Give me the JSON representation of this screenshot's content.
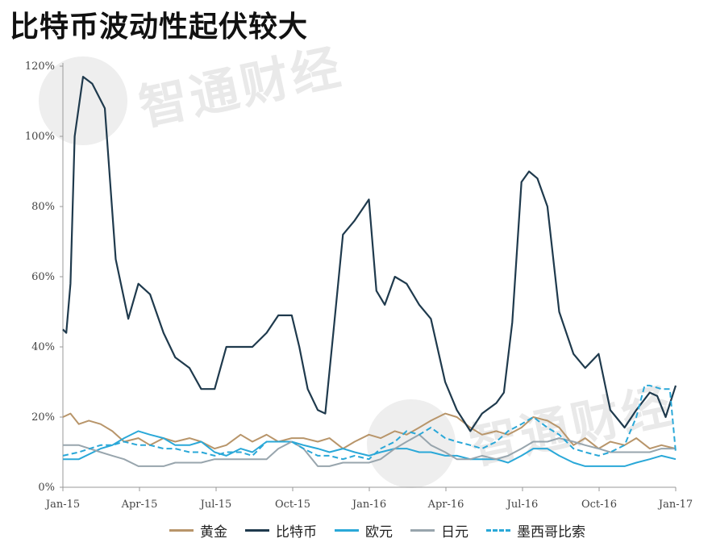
{
  "title": "比特币波动性起伏较大",
  "watermark": "智通财经",
  "colors": {
    "gold": "#b8956a",
    "bitcoin": "#1f3a4d",
    "euro": "#2aa8d8",
    "yen": "#98a5ad",
    "peso": "#2aa8d8"
  },
  "chart_data": {
    "type": "line",
    "title": "比特币波动性起伏较大",
    "xlabel": "",
    "ylabel": "",
    "x_range": [
      "2015-01-01",
      "2017-01-01"
    ],
    "ylim": [
      0,
      120
    ],
    "y_ticks": [
      "0%",
      "20%",
      "40%",
      "60%",
      "80%",
      "100%",
      "120%"
    ],
    "x_ticks": [
      "Jan-15",
      "Apr-15",
      "Jul-15",
      "Oct-15",
      "Jan-16",
      "Apr-16",
      "Jul-16",
      "Oct-16",
      "Jan-17"
    ],
    "legend_position": "bottom",
    "series": [
      {
        "name": "黄金",
        "color": "#b8956a",
        "dash": false,
        "x": [
          "2015-01-01",
          "2015-01-10",
          "2015-01-20",
          "2015-02-01",
          "2015-02-15",
          "2015-03-01",
          "2015-03-15",
          "2015-04-01",
          "2015-04-15",
          "2015-05-01",
          "2015-05-15",
          "2015-06-01",
          "2015-06-15",
          "2015-07-01",
          "2015-07-15",
          "2015-08-01",
          "2015-08-15",
          "2015-09-01",
          "2015-09-15",
          "2015-10-01",
          "2015-10-15",
          "2015-11-01",
          "2015-11-15",
          "2015-12-01",
          "2015-12-15",
          "2016-01-01",
          "2016-01-15",
          "2016-02-01",
          "2016-02-15",
          "2016-03-01",
          "2016-03-15",
          "2016-04-01",
          "2016-04-15",
          "2016-05-01",
          "2016-05-15",
          "2016-06-01",
          "2016-06-15",
          "2016-07-01",
          "2016-07-15",
          "2016-08-01",
          "2016-08-15",
          "2016-09-01",
          "2016-09-15",
          "2016-10-01",
          "2016-10-15",
          "2016-11-01",
          "2016-11-15",
          "2016-12-01",
          "2016-12-15",
          "2017-01-01"
        ],
        "y": [
          20,
          21,
          18,
          19,
          18,
          16,
          13,
          14,
          12,
          14,
          13,
          14,
          13,
          11,
          12,
          15,
          13,
          15,
          13,
          14,
          14,
          13,
          14,
          11,
          13,
          15,
          14,
          16,
          15,
          17,
          19,
          21,
          20,
          17,
          15,
          16,
          15,
          17,
          20,
          19,
          17,
          12,
          14,
          11,
          13,
          12,
          14,
          11,
          12,
          11
        ]
      },
      {
        "name": "比特币",
        "color": "#1f3a4d",
        "dash": false,
        "x": [
          "2015-01-01",
          "2015-01-05",
          "2015-01-10",
          "2015-01-15",
          "2015-01-25",
          "2015-02-05",
          "2015-02-20",
          "2015-03-05",
          "2015-03-20",
          "2015-04-01",
          "2015-04-15",
          "2015-05-01",
          "2015-05-15",
          "2015-06-01",
          "2015-06-15",
          "2015-07-01",
          "2015-07-15",
          "2015-08-01",
          "2015-08-15",
          "2015-09-01",
          "2015-09-15",
          "2015-10-01",
          "2015-10-10",
          "2015-10-20",
          "2015-11-01",
          "2015-11-10",
          "2015-11-20",
          "2015-12-01",
          "2015-12-15",
          "2016-01-01",
          "2016-01-10",
          "2016-01-20",
          "2016-02-01",
          "2016-02-15",
          "2016-03-01",
          "2016-03-15",
          "2016-04-01",
          "2016-04-15",
          "2016-05-01",
          "2016-05-15",
          "2016-06-01",
          "2016-06-10",
          "2016-06-20",
          "2016-07-01",
          "2016-07-10",
          "2016-07-20",
          "2016-08-01",
          "2016-08-15",
          "2016-09-01",
          "2016-09-15",
          "2016-10-01",
          "2016-10-15",
          "2016-11-01",
          "2016-11-15",
          "2016-12-01",
          "2016-12-10",
          "2016-12-20",
          "2017-01-01"
        ],
        "y": [
          45,
          44,
          58,
          100,
          117,
          115,
          108,
          65,
          48,
          58,
          55,
          44,
          37,
          34,
          28,
          28,
          40,
          40,
          40,
          44,
          49,
          49,
          40,
          28,
          22,
          21,
          45,
          72,
          76,
          82,
          56,
          52,
          60,
          58,
          52,
          48,
          30,
          22,
          16,
          21,
          24,
          27,
          47,
          87,
          90,
          88,
          80,
          50,
          38,
          34,
          38,
          22,
          17,
          22,
          27,
          26,
          20,
          29
        ]
      },
      {
        "name": "欧元",
        "color": "#2aa8d8",
        "dash": false,
        "x": [
          "2015-01-01",
          "2015-01-20",
          "2015-02-15",
          "2015-03-01",
          "2015-03-15",
          "2015-04-01",
          "2015-04-15",
          "2015-05-01",
          "2015-05-15",
          "2015-06-01",
          "2015-06-15",
          "2015-07-01",
          "2015-07-15",
          "2015-08-01",
          "2015-08-15",
          "2015-09-01",
          "2015-09-15",
          "2015-10-01",
          "2015-10-15",
          "2015-11-01",
          "2015-11-15",
          "2015-12-01",
          "2015-12-15",
          "2016-01-01",
          "2016-01-15",
          "2016-02-01",
          "2016-02-15",
          "2016-03-01",
          "2016-03-15",
          "2016-04-01",
          "2016-04-15",
          "2016-05-01",
          "2016-05-15",
          "2016-06-01",
          "2016-06-15",
          "2016-07-01",
          "2016-07-15",
          "2016-08-01",
          "2016-08-15",
          "2016-09-01",
          "2016-09-15",
          "2016-10-01",
          "2016-10-15",
          "2016-11-01",
          "2016-11-15",
          "2016-12-01",
          "2016-12-15",
          "2017-01-01"
        ],
        "y": [
          8,
          8,
          11,
          12,
          14,
          16,
          15,
          14,
          12,
          12,
          13,
          10,
          9,
          11,
          10,
          13,
          13,
          13,
          12,
          11,
          10,
          11,
          10,
          9,
          10,
          11,
          11,
          10,
          10,
          9,
          9,
          8,
          8,
          8,
          7,
          9,
          11,
          11,
          9,
          7,
          6,
          6,
          6,
          6,
          7,
          8,
          9,
          8
        ]
      },
      {
        "name": "日元",
        "color": "#98a5ad",
        "dash": false,
        "x": [
          "2015-01-01",
          "2015-01-20",
          "2015-02-15",
          "2015-03-01",
          "2015-03-15",
          "2015-04-01",
          "2015-04-15",
          "2015-05-01",
          "2015-05-15",
          "2015-06-01",
          "2015-06-15",
          "2015-07-01",
          "2015-07-15",
          "2015-08-01",
          "2015-08-15",
          "2015-09-01",
          "2015-09-15",
          "2015-10-01",
          "2015-10-15",
          "2015-11-01",
          "2015-11-15",
          "2015-12-01",
          "2015-12-15",
          "2016-01-01",
          "2016-01-15",
          "2016-02-01",
          "2016-02-15",
          "2016-03-01",
          "2016-03-15",
          "2016-04-01",
          "2016-04-15",
          "2016-05-01",
          "2016-05-15",
          "2016-06-01",
          "2016-06-15",
          "2016-07-01",
          "2016-07-15",
          "2016-08-01",
          "2016-08-15",
          "2016-09-01",
          "2016-09-15",
          "2016-10-01",
          "2016-10-15",
          "2016-11-01",
          "2016-11-15",
          "2016-12-01",
          "2016-12-15",
          "2017-01-01"
        ],
        "y": [
          12,
          12,
          10,
          9,
          8,
          6,
          6,
          6,
          7,
          7,
          7,
          8,
          8,
          8,
          8,
          8,
          11,
          13,
          11,
          6,
          6,
          7,
          7,
          7,
          8,
          11,
          13,
          15,
          12,
          10,
          8,
          8,
          9,
          8,
          9,
          11,
          13,
          13,
          14,
          13,
          12,
          11,
          10,
          10,
          10,
          10,
          11,
          11
        ]
      },
      {
        "name": "墨西哥比索",
        "color": "#2aa8d8",
        "dash": true,
        "x": [
          "2015-01-01",
          "2015-01-20",
          "2015-02-15",
          "2015-03-01",
          "2015-03-15",
          "2015-04-01",
          "2015-04-15",
          "2015-05-01",
          "2015-05-15",
          "2015-06-01",
          "2015-06-15",
          "2015-07-01",
          "2015-07-15",
          "2015-08-01",
          "2015-08-15",
          "2015-09-01",
          "2015-09-15",
          "2015-10-01",
          "2015-10-15",
          "2015-11-01",
          "2015-11-15",
          "2015-12-01",
          "2015-12-15",
          "2016-01-01",
          "2016-01-15",
          "2016-02-01",
          "2016-02-15",
          "2016-03-01",
          "2016-03-15",
          "2016-04-01",
          "2016-04-15",
          "2016-05-01",
          "2016-05-15",
          "2016-06-01",
          "2016-06-15",
          "2016-07-01",
          "2016-07-15",
          "2016-08-01",
          "2016-08-15",
          "2016-09-01",
          "2016-09-15",
          "2016-10-01",
          "2016-10-15",
          "2016-11-01",
          "2016-11-15",
          "2016-11-25",
          "2016-12-01",
          "2016-12-15",
          "2016-12-25",
          "2017-01-01"
        ],
        "y": [
          9,
          10,
          12,
          12,
          13,
          12,
          12,
          11,
          11,
          10,
          10,
          9,
          10,
          10,
          9,
          13,
          13,
          13,
          11,
          9,
          9,
          8,
          9,
          8,
          11,
          13,
          16,
          15,
          17,
          14,
          13,
          12,
          11,
          13,
          16,
          18,
          20,
          17,
          15,
          11,
          10,
          9,
          10,
          12,
          20,
          29,
          29,
          28,
          28,
          10
        ]
      }
    ]
  }
}
